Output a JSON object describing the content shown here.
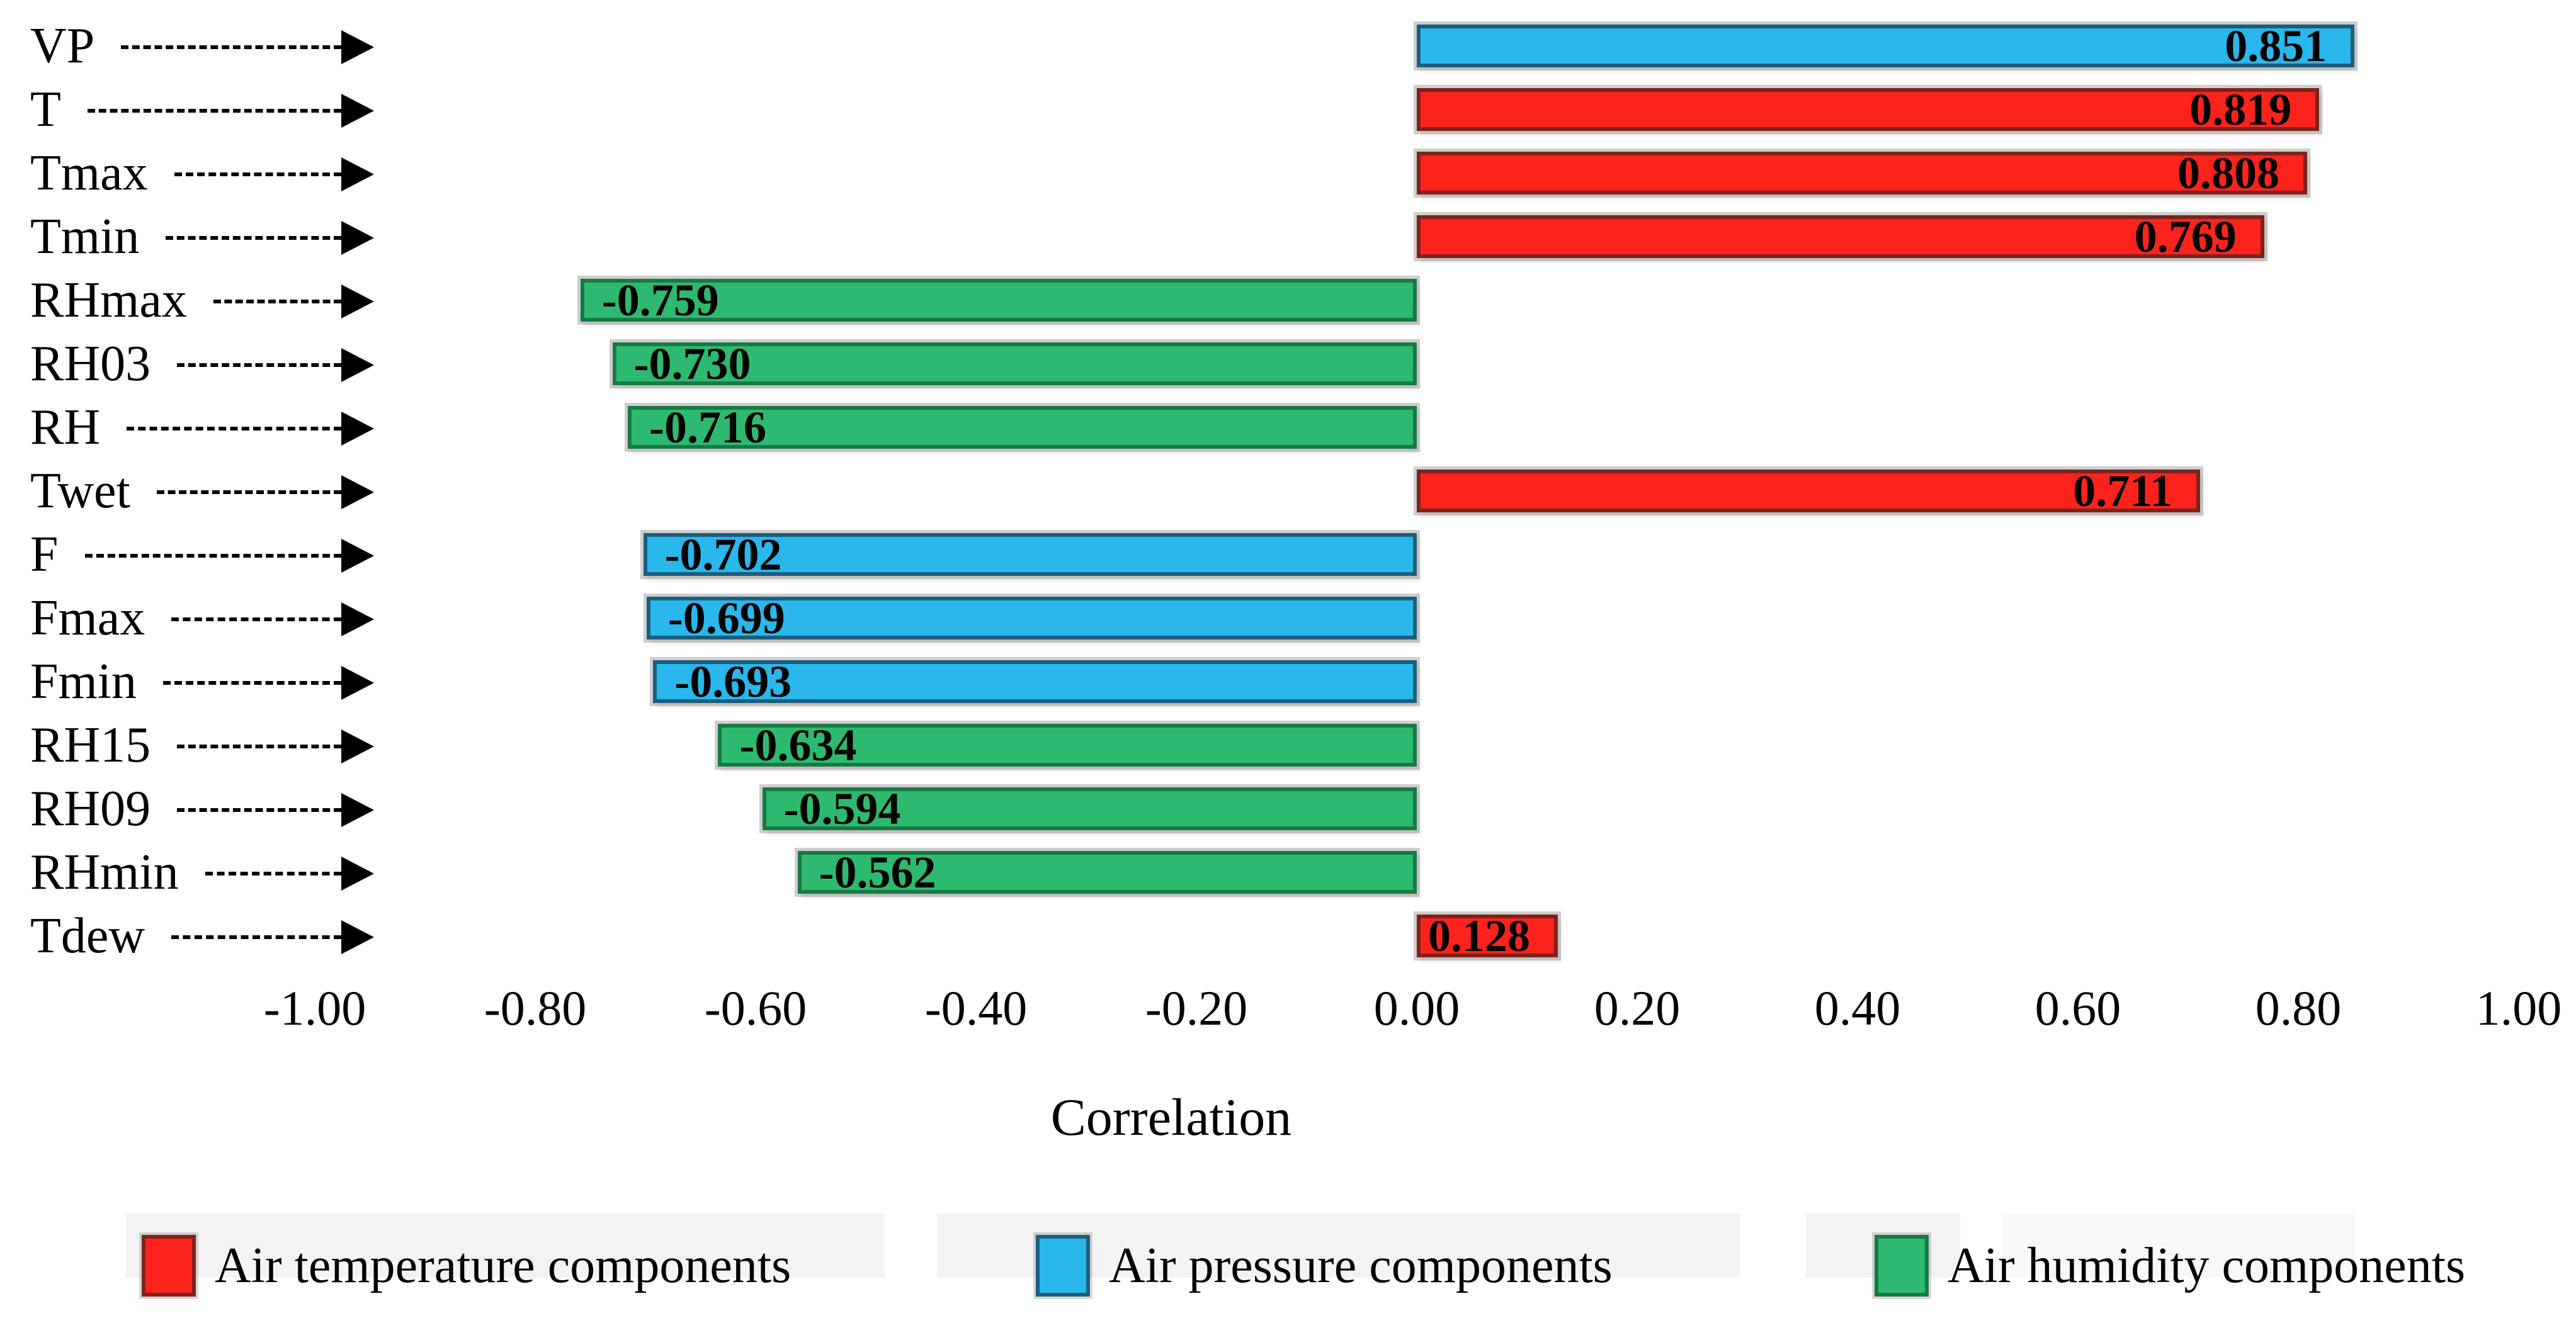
{
  "figure": {
    "background": "#ffffff"
  },
  "chart_data": {
    "type": "bar",
    "orientation": "horizontal",
    "title": "",
    "xlabel": "Correlation",
    "ylabel": "",
    "xlim": [
      -1.0,
      1.0
    ],
    "grid": false,
    "legend_position": "bottom",
    "xticks": [
      -1.0,
      -0.8,
      -0.6,
      -0.4,
      -0.2,
      0.0,
      0.2,
      0.4,
      0.6,
      0.8,
      1.0
    ],
    "xtick_labels": [
      "-1.00",
      "-0.80",
      "-0.60",
      "-0.40",
      "-0.20",
      "0.00",
      "0.20",
      "0.40",
      "0.60",
      "0.80",
      "1.00"
    ],
    "categories": [
      "VP",
      "T",
      "Tmax",
      "Tmin",
      "RHmax",
      "RH03",
      "RH",
      "Twet",
      "F",
      "Fmax",
      "Fmin",
      "RH15",
      "RH09",
      "RHmin",
      "Tdew"
    ],
    "values": [
      0.851,
      0.819,
      0.808,
      0.769,
      -0.759,
      -0.73,
      -0.716,
      0.711,
      -0.702,
      -0.699,
      -0.693,
      -0.634,
      -0.594,
      -0.562,
      0.128
    ],
    "bar_labels": [
      "0.851",
      "0.819",
      "0.808",
      "0.769",
      "-0.759",
      "-0.730",
      "-0.716",
      "0.711",
      "-0.702",
      "-0.699",
      "-0.693",
      "-0.634",
      "-0.594",
      "-0.562",
      "0.128"
    ],
    "groups": [
      "pressure",
      "temperature",
      "temperature",
      "temperature",
      "humidity",
      "humidity",
      "humidity",
      "temperature",
      "pressure",
      "pressure",
      "pressure",
      "humidity",
      "humidity",
      "humidity",
      "temperature"
    ],
    "legend": [
      {
        "key": "temperature",
        "label": "Air temperature  components"
      },
      {
        "key": "pressure",
        "label": "Air pressure  components"
      },
      {
        "key": "humidity",
        "label": "Air humidity  components"
      }
    ]
  },
  "colors": {
    "temperature": {
      "fill": "#fb231c",
      "border": "#7e221c"
    },
    "pressure": {
      "fill": "#29b7ec",
      "border": "#1a5e7e"
    },
    "humidity": {
      "fill": "#2eba6e",
      "border": "#177a42"
    },
    "bar_value_text": "#000000",
    "axis_text": "#000000",
    "arrow": "#000000",
    "legend_ghost": "#f3f3f3"
  }
}
